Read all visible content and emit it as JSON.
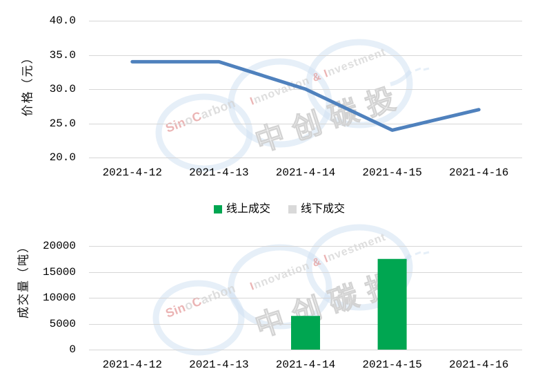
{
  "colors": {
    "grid": "#D6D6D6",
    "text": "#000000",
    "background": "#FFFFFF"
  },
  "watermark": {
    "brand": [
      [
        "Sin",
        "r"
      ],
      [
        "o",
        "g"
      ],
      [
        "C",
        "r"
      ],
      [
        "arbon",
        "g"
      ]
    ],
    "tagline": [
      [
        "I",
        "r"
      ],
      [
        "nnovation ",
        "g"
      ],
      [
        "&",
        "r"
      ],
      [
        " ",
        "g"
      ],
      [
        "I",
        "r"
      ],
      [
        "nvestment",
        "g"
      ]
    ],
    "cjk": "中创碳投",
    "red": "#E08A8A",
    "gray": "#CDCDCD",
    "ring": "#C9DDF0"
  },
  "chart_data": [
    {
      "type": "line",
      "title": "",
      "ylabel": "价格（元）",
      "xlabel": "",
      "categories": [
        "2021-4-12",
        "2021-4-13",
        "2021-4-14",
        "2021-4-15",
        "2021-4-16"
      ],
      "series": [
        {
          "name": "价格",
          "values": [
            34.0,
            34.0,
            30.0,
            24.0,
            27.0
          ],
          "color": "#4F81BD"
        }
      ],
      "ylim": [
        20,
        40
      ],
      "yticks": [
        20,
        25,
        30,
        35,
        40
      ],
      "ytick_labels": [
        "20.0",
        "25.0",
        "30.0",
        "35.0",
        "40.0"
      ],
      "grid": true,
      "legend_position": "none"
    },
    {
      "type": "bar",
      "title": "",
      "ylabel": "成交量（吨）",
      "xlabel": "",
      "categories": [
        "2021-4-12",
        "2021-4-13",
        "2021-4-14",
        "2021-4-15",
        "2021-4-16"
      ],
      "series": [
        {
          "name": "线上成交",
          "values": [
            0,
            0,
            6500,
            17500,
            0
          ],
          "color": "#00A651"
        },
        {
          "name": "线下成交",
          "values": [
            0,
            0,
            0,
            0,
            0
          ],
          "color": "#D9D9D9"
        }
      ],
      "ylim": [
        0,
        20000
      ],
      "yticks": [
        0,
        5000,
        10000,
        15000,
        20000
      ],
      "ytick_labels": [
        "0",
        "5000",
        "10000",
        "15000",
        "20000"
      ],
      "grid": true,
      "legend_position": "top-center"
    }
  ]
}
